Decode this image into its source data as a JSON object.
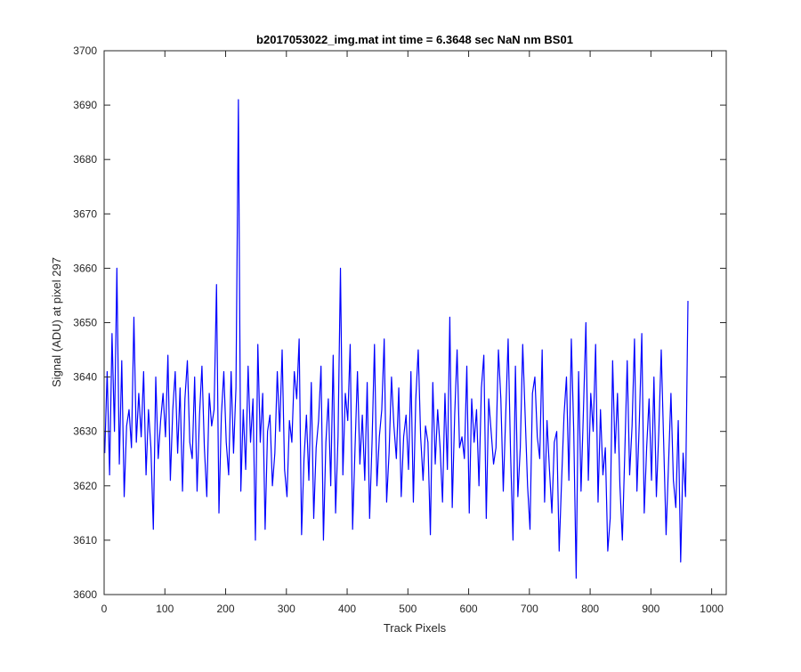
{
  "figure": {
    "title": "b2017053022_img.mat int time = 6.3648 sec  NaN nm BS01"
  },
  "chart_data": {
    "type": "line",
    "title": "b2017053022_img.mat int time = 6.3648 sec  NaN nm BS01",
    "xlabel": "Track Pixels",
    "ylabel": "Signal (ADU) at pixel 297",
    "xlim": [
      0,
      1024
    ],
    "ylim": [
      3600,
      3700
    ],
    "xticks": [
      0,
      100,
      200,
      300,
      400,
      500,
      600,
      700,
      800,
      900,
      1000
    ],
    "yticks": [
      3600,
      3610,
      3620,
      3630,
      3640,
      3650,
      3660,
      3670,
      3680,
      3690,
      3700
    ],
    "grid": false,
    "box": true,
    "series_color": "#0000ff",
    "x_start": 1,
    "x_step": 4,
    "series": [
      {
        "values": [
          3626,
          3641,
          3622,
          3648,
          3630,
          3660,
          3624,
          3643,
          3618,
          3631,
          3634,
          3627,
          3651,
          3628,
          3637,
          3629,
          3641,
          3622,
          3634,
          3627,
          3612,
          3640,
          3625,
          3632,
          3637,
          3629,
          3644,
          3621,
          3634,
          3641,
          3626,
          3638,
          3619,
          3636,
          3643,
          3628,
          3625,
          3640,
          3619,
          3633,
          3642,
          3627,
          3618,
          3637,
          3631,
          3634,
          3657,
          3615,
          3633,
          3641,
          3628,
          3622,
          3641,
          3626,
          3638,
          3691,
          3619,
          3634,
          3623,
          3642,
          3628,
          3636,
          3610,
          3646,
          3628,
          3637,
          3612,
          3630,
          3633,
          3620,
          3626,
          3641,
          3630,
          3645,
          3623,
          3618,
          3632,
          3628,
          3641,
          3636,
          3647,
          3611,
          3625,
          3633,
          3621,
          3639,
          3614,
          3627,
          3632,
          3642,
          3610,
          3628,
          3636,
          3620,
          3644,
          3615,
          3629,
          3660,
          3622,
          3637,
          3632,
          3646,
          3612,
          3627,
          3641,
          3624,
          3633,
          3621,
          3639,
          3614,
          3628,
          3646,
          3620,
          3629,
          3634,
          3647,
          3617,
          3626,
          3640,
          3631,
          3625,
          3638,
          3618,
          3629,
          3633,
          3623,
          3641,
          3617,
          3636,
          3645,
          3629,
          3621,
          3631,
          3628,
          3611,
          3639,
          3624,
          3634,
          3627,
          3617,
          3637,
          3623,
          3651,
          3616,
          3633,
          3645,
          3627,
          3629,
          3625,
          3642,
          3615,
          3636,
          3628,
          3634,
          3620,
          3638,
          3644,
          3614,
          3636,
          3630,
          3624,
          3627,
          3645,
          3636,
          3619,
          3633,
          3647,
          3626,
          3610,
          3642,
          3618,
          3627,
          3646,
          3633,
          3620,
          3612,
          3637,
          3640,
          3629,
          3625,
          3645,
          3617,
          3632,
          3623,
          3615,
          3628,
          3630,
          3608,
          3621,
          3633,
          3640,
          3621,
          3647,
          3630,
          3603,
          3641,
          3619,
          3634,
          3650,
          3621,
          3637,
          3630,
          3646,
          3617,
          3634,
          3622,
          3627,
          3608,
          3614,
          3643,
          3626,
          3637,
          3620,
          3610,
          3626,
          3643,
          3622,
          3631,
          3647,
          3619,
          3632,
          3648,
          3615,
          3627,
          3636,
          3621,
          3640,
          3618,
          3630,
          3645,
          3628,
          3611,
          3624,
          3637,
          3621,
          3616,
          3632,
          3606,
          3626,
          3618,
          3654
        ]
      }
    ]
  }
}
